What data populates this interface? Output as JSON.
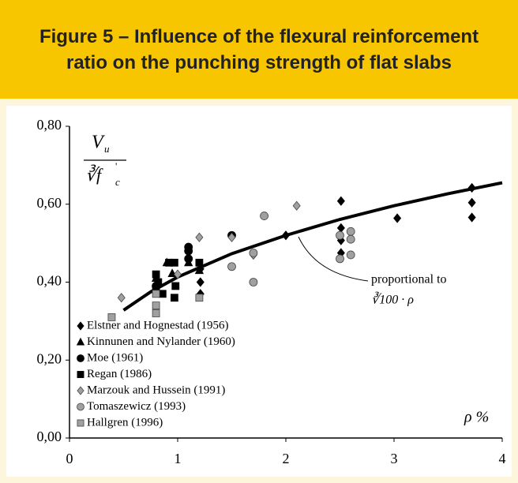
{
  "chart_data": {
    "type": "scatter",
    "title_lines": [
      "Figure 5 – Influence of the flexural reinforcement",
      "ratio on the punching strength of flat slabs"
    ],
    "ylabel": {
      "numerator": "V",
      "numerator_sub": "u",
      "denominator": "∛f",
      "denominator_sup": "'",
      "denominator_sub": "c"
    },
    "xlabel": "ρ %",
    "annotation": [
      "proportional to",
      "∛100 · ρ"
    ],
    "xlim": [
      0,
      4
    ],
    "xticks": [
      0,
      1,
      2,
      3,
      4
    ],
    "ylim": [
      0,
      0.8
    ],
    "yticks": [
      {
        "value": 0,
        "label": "0,00"
      },
      {
        "value": 0.2,
        "label": "0,20"
      },
      {
        "value": 0.4,
        "label": "0,40"
      },
      {
        "value": 0.6,
        "label": "0,60"
      },
      {
        "value": 0.8,
        "label": "0,80"
      }
    ],
    "legend": "lower left",
    "curve": {
      "color": "#000000",
      "x": [
        0.5,
        0.75,
        1,
        1.5,
        2,
        2.5,
        3,
        3.5,
        4
      ],
      "values": [
        0.328,
        0.375,
        0.413,
        0.473,
        0.52,
        0.561,
        0.596,
        0.627,
        0.655
      ]
    },
    "series": [
      {
        "name": "Elstner and Hognestad (1956)",
        "marker": "diamond",
        "color": "#000000",
        "x": [
          1.21,
          1.21,
          1.21,
          2.0,
          2.51,
          2.51,
          2.51,
          2.51,
          3.03,
          3.72,
          3.72,
          3.72
        ],
        "values": [
          0.434,
          0.4,
          0.37,
          0.52,
          0.608,
          0.539,
          0.507,
          0.475,
          0.564,
          0.642,
          0.604,
          0.566
        ]
      },
      {
        "name": "Kinnunen and Nylander (1960)",
        "marker": "triangle",
        "color": "#000000",
        "x": [
          0.8,
          0.9,
          1.1,
          1.2,
          0.95
        ],
        "values": [
          0.41,
          0.45,
          0.45,
          0.43,
          0.422
        ]
      },
      {
        "name": "Moe (1961)",
        "marker": "circle",
        "color": "#000000",
        "x": [
          1.1,
          1.1,
          1.1,
          1.5,
          0.8
        ],
        "values": [
          0.49,
          0.48,
          0.46,
          0.52,
          0.39
        ]
      },
      {
        "name": "Regan (1986)",
        "marker": "square",
        "color": "#000000",
        "x": [
          0.8,
          0.82,
          0.86,
          0.92,
          0.97,
          0.98,
          0.97,
          0.8,
          1.2
        ],
        "values": [
          0.42,
          0.4,
          0.37,
          0.45,
          0.45,
          0.39,
          0.36,
          0.38,
          0.45
        ]
      },
      {
        "name": "Marzouk and Hussein (1991)",
        "marker": "diamond",
        "color": "#a0a0a0",
        "x": [
          0.48,
          1.0,
          1.2,
          1.5,
          2.1,
          1.7
        ],
        "values": [
          0.36,
          0.42,
          0.515,
          0.515,
          0.596,
          0.47
        ]
      },
      {
        "name": "Tomaszewicz (1993)",
        "marker": "circle",
        "color": "#a0a0a0",
        "x": [
          1.8,
          1.5,
          1.7,
          1.7,
          2.5,
          2.6,
          2.6,
          2.6,
          2.5
        ],
        "values": [
          0.57,
          0.44,
          0.475,
          0.4,
          0.46,
          0.53,
          0.51,
          0.47,
          0.52
        ]
      },
      {
        "name": "Hallgren (1996)",
        "marker": "square",
        "color": "#a0a0a0",
        "x": [
          0.39,
          0.8,
          0.8,
          1.2,
          0.8
        ],
        "values": [
          0.31,
          0.34,
          0.32,
          0.36,
          0.37
        ]
      }
    ]
  }
}
